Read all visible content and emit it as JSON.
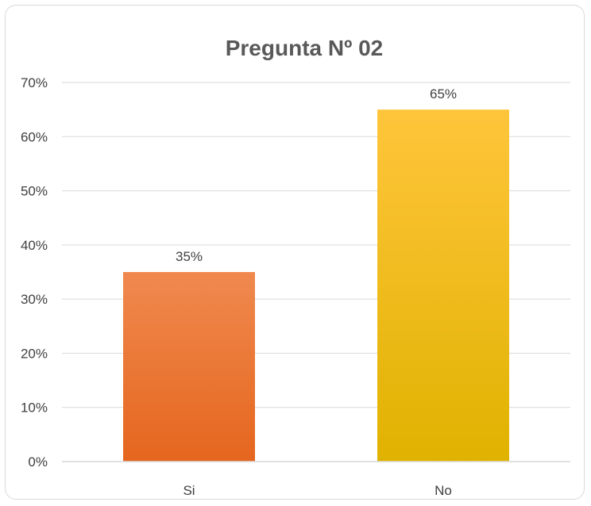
{
  "chart_data": {
    "type": "bar",
    "title": "Pregunta Nº 02",
    "categories": [
      "Si",
      "No"
    ],
    "values": [
      35,
      65
    ],
    "value_labels": [
      "35%",
      "65%"
    ],
    "ylim": [
      0,
      70
    ],
    "yticks": [
      0,
      10,
      20,
      30,
      40,
      50,
      60,
      70
    ],
    "ytick_labels": [
      "0%",
      "10%",
      "20%",
      "30%",
      "40%",
      "50%",
      "60%",
      "70%"
    ],
    "xlabel": "",
    "ylabel": "",
    "grid": true,
    "legend": "none",
    "bar_colors": [
      {
        "top": "#F0894F",
        "bottom": "#E5661E"
      },
      {
        "top": "#FFC53B",
        "bottom": "#E0B200"
      }
    ]
  }
}
